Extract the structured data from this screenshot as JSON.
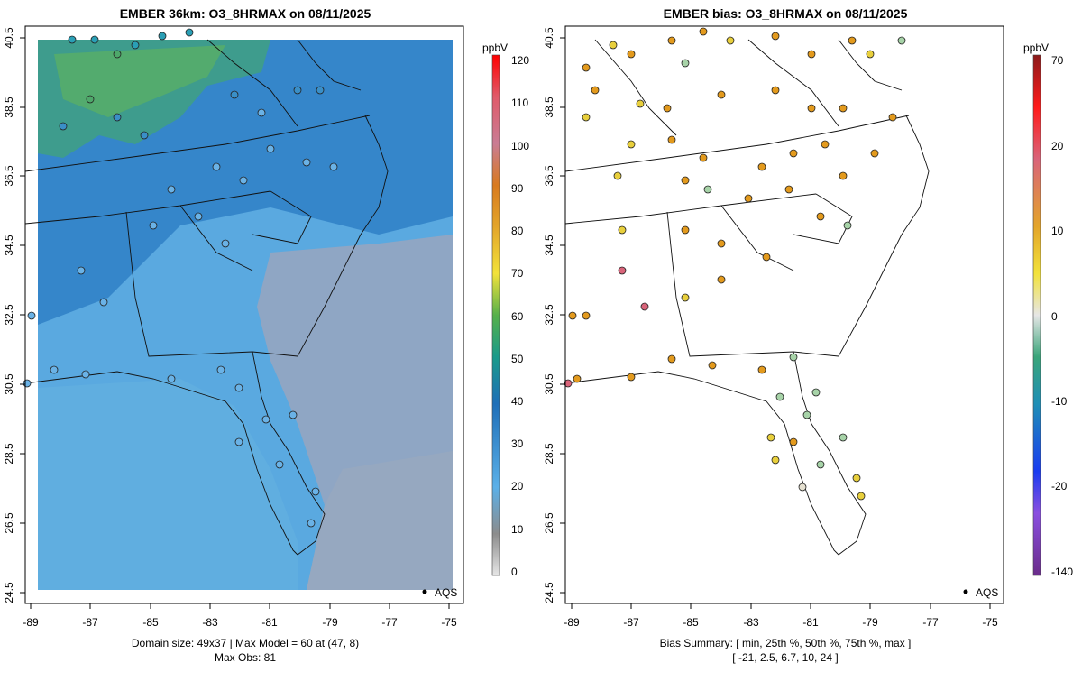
{
  "left_panel": {
    "title": "EMBER 36km: O3_8HRMAX on 08/11/2025",
    "caption_line1": "Domain size: 49x37 | Max Model = 60 at (47, 8)",
    "caption_line2": "Max Obs: 81",
    "legend_label": "AQS",
    "colorbar": {
      "unit": "ppbV",
      "ticks": [
        "0",
        "10",
        "20",
        "30",
        "40",
        "50",
        "60",
        "70",
        "80",
        "90",
        "100",
        "110",
        "120"
      ]
    }
  },
  "right_panel": {
    "title": "EMBER bias: O3_8HRMAX on 08/11/2025",
    "caption_line1": "Bias Summary: [ min, 25th %, 50th %, 75th %, max ]",
    "caption_line2": "[ -21,  2.5,  6.7,  10,  24 ]",
    "legend_label": "AQS",
    "colorbar": {
      "unit": "ppbV",
      "ticks": [
        "-140",
        "-20",
        "-10",
        "0",
        "10",
        "20",
        "70"
      ]
    }
  },
  "axes": {
    "x_ticks": [
      "-89",
      "-87",
      "-85",
      "-83",
      "-81",
      "-79",
      "-77",
      "-75"
    ],
    "y_ticks": [
      "24.5",
      "26.5",
      "28.5",
      "30.5",
      "32.5",
      "34.5",
      "36.5",
      "38.5",
      "40.5"
    ]
  },
  "colors": {
    "ocean": "#8fa6c4",
    "land_mid": "#5aa9e0",
    "land_dark": "#2e7fc4",
    "green": "#4ea86a",
    "station_blue": "#6ab2e6",
    "bias_orange": "#e39a1d",
    "bias_yellow": "#e8cf3c",
    "bias_green": "#a7d3a8"
  }
}
